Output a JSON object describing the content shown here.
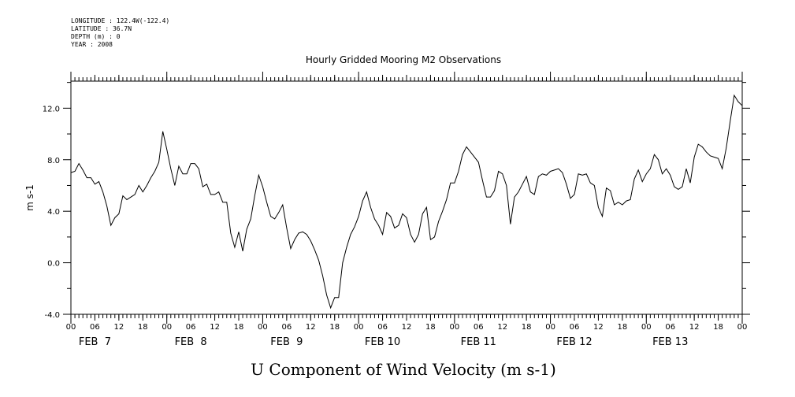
{
  "metadata": {
    "longitude": "LONGITUDE : 122.4W(-122.4)",
    "latitude": "LATITUDE : 36.7N",
    "depth": "DEPTH (m) : 0",
    "year": "YEAR : 2008"
  },
  "chart_data": {
    "type": "line",
    "title": "Hourly Gridded Mooring M2 Observations",
    "xlabel": "U Component of Wind Velocity (m s-1)",
    "ylabel": "m s-1",
    "ylim": [
      -4.0,
      14.1
    ],
    "yticks": [
      "-4.0",
      "0.0",
      "4.0",
      "8.0",
      "12.0"
    ],
    "hour_ticks": [
      "00",
      "06",
      "12",
      "18",
      "00",
      "06",
      "12",
      "18",
      "00",
      "06",
      "12",
      "18",
      "00",
      "06",
      "12",
      "18",
      "00",
      "06",
      "12",
      "18",
      "00",
      "06",
      "12",
      "18",
      "00",
      "06",
      "12",
      "18",
      "00"
    ],
    "date_labels": [
      "FEB  7",
      "FEB  8",
      "FEB  9",
      "FEB 10",
      "FEB 11",
      "FEB 12",
      "FEB 13"
    ],
    "x_unit": "hours since FEB 7 00:00",
    "series": [
      {
        "x": [
          0,
          1,
          2,
          3,
          4,
          5,
          6,
          7,
          8,
          9,
          10,
          11,
          12,
          13,
          14,
          15,
          16,
          17,
          18,
          19,
          20,
          21,
          22,
          23,
          24,
          25,
          26,
          27,
          28,
          29,
          30,
          31,
          32,
          33,
          34,
          35,
          36,
          37,
          38,
          39,
          40,
          41,
          42,
          43,
          44,
          45,
          46,
          47,
          48,
          49,
          50,
          51,
          52,
          53,
          54,
          55,
          56,
          57,
          58,
          59,
          60,
          61,
          62,
          63,
          64,
          65,
          66,
          67,
          68,
          69,
          70,
          71,
          72,
          73,
          74,
          75,
          76,
          77,
          78,
          79,
          80,
          81,
          82,
          83,
          84,
          85,
          86,
          87,
          88,
          89,
          90,
          91,
          92,
          93,
          94,
          95,
          96,
          97,
          98,
          99,
          100,
          101,
          102,
          103,
          104,
          105,
          106,
          107,
          108,
          109,
          110,
          111,
          112,
          113,
          114,
          115,
          116,
          117,
          118,
          119,
          120,
          121,
          122,
          123,
          124,
          125,
          126,
          127,
          128,
          129,
          130,
          131,
          132,
          133,
          134,
          135,
          136,
          137,
          138,
          139,
          140,
          141,
          142,
          143,
          144,
          145,
          146,
          147,
          148,
          149,
          150,
          151,
          152,
          153,
          154,
          155,
          156,
          157,
          158,
          159,
          160,
          161,
          162,
          163,
          164,
          165,
          166,
          167,
          168
        ],
        "values": [
          7.0,
          7.1,
          7.7,
          7.2,
          6.6,
          6.6,
          6.1,
          6.3,
          5.5,
          4.4,
          2.9,
          3.5,
          3.8,
          5.2,
          4.9,
          5.1,
          5.3,
          6.0,
          5.5,
          6.0,
          6.6,
          7.1,
          7.8,
          10.2,
          8.8,
          7.3,
          6.0,
          7.5,
          6.9,
          6.9,
          7.7,
          7.7,
          7.3,
          5.9,
          6.1,
          5.3,
          5.3,
          5.5,
          4.7,
          4.7,
          2.3,
          1.2,
          2.4,
          0.9,
          2.6,
          3.4,
          5.2,
          6.8,
          5.9,
          4.7,
          3.6,
          3.4,
          3.9,
          4.5,
          2.7,
          1.1,
          1.8,
          2.3,
          2.4,
          2.2,
          1.7,
          1.0,
          0.2,
          -1.0,
          -2.5,
          -3.5,
          -2.7,
          -2.7,
          0.0,
          1.2,
          2.2,
          2.8,
          3.6,
          4.8,
          5.5,
          4.3,
          3.4,
          2.9,
          2.2,
          3.9,
          3.6,
          2.7,
          2.9,
          3.8,
          3.5,
          2.2,
          1.6,
          2.2,
          3.8,
          4.3,
          1.8,
          2.0,
          3.2,
          4.0,
          4.9,
          6.2,
          6.2,
          7.1,
          8.4,
          9.0,
          8.6,
          8.2,
          7.8,
          6.4,
          5.1,
          5.1,
          5.6,
          7.1,
          6.9,
          6.0,
          3.0,
          5.1,
          5.5,
          6.1,
          6.7,
          5.5,
          5.3,
          6.7,
          6.9,
          6.8,
          7.1,
          7.2,
          7.3,
          7.0,
          6.1,
          5.0,
          5.3,
          6.9,
          6.8,
          6.9,
          6.2,
          6.0,
          4.3,
          3.6,
          5.8,
          5.6,
          4.5,
          4.7,
          4.5,
          4.8,
          4.9,
          6.5,
          7.2,
          6.3,
          6.9,
          7.3,
          8.4,
          8.0,
          6.9,
          7.3,
          6.8,
          5.9,
          5.7,
          5.9,
          7.3,
          6.2,
          8.2,
          9.2,
          9.0,
          8.6,
          8.3,
          8.2,
          8.1,
          7.3,
          8.9,
          11.0,
          13.0,
          12.5,
          12.2
        ]
      }
    ],
    "grid": false,
    "color": "#000000"
  }
}
